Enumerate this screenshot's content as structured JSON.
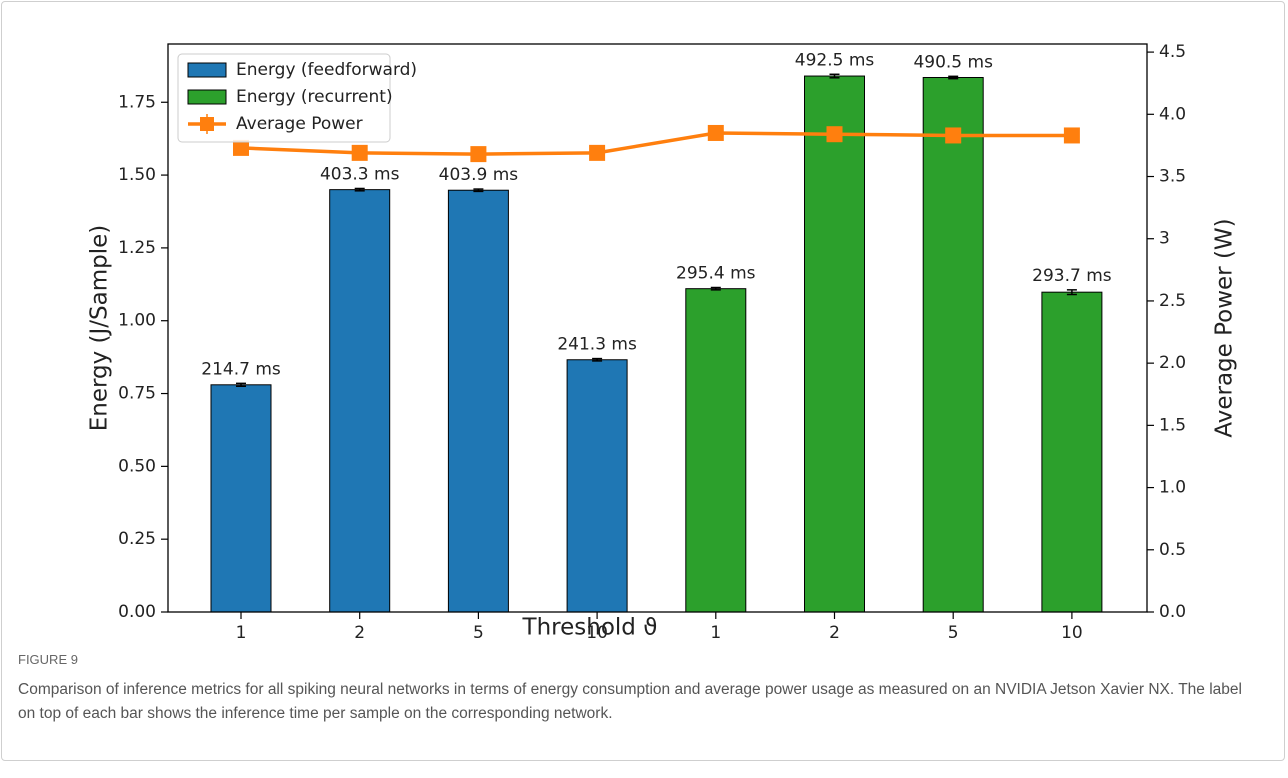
{
  "chart_data": {
    "type": "bar",
    "categories": [
      "1",
      "2",
      "5",
      "10",
      "1",
      "2",
      "5",
      "10"
    ],
    "series": [
      {
        "name": "Energy (feedforward)",
        "type": "bar",
        "color": "#1f77b4",
        "values": [
          0.78,
          1.45,
          1.448,
          0.866,
          null,
          null,
          null,
          null
        ],
        "errors": [
          0.005,
          0.004,
          0.004,
          0.004,
          null,
          null,
          null,
          null
        ]
      },
      {
        "name": "Energy (recurrent)",
        "type": "bar",
        "color": "#2ca02c",
        "values": [
          null,
          null,
          null,
          null,
          1.11,
          1.84,
          1.835,
          1.098
        ],
        "errors": [
          null,
          null,
          null,
          null,
          0.004,
          0.006,
          0.004,
          0.008
        ]
      },
      {
        "name": "Average Power",
        "type": "line",
        "axis": "y2",
        "color": "#ff7f0e",
        "values": [
          3.73,
          3.69,
          3.68,
          3.69,
          3.85,
          3.84,
          3.83,
          3.83
        ]
      }
    ],
    "bar_labels": [
      "214.7 ms",
      "403.3 ms",
      "403.9 ms",
      "241.3 ms",
      "295.4 ms",
      "492.5 ms",
      "490.5 ms",
      "293.7 ms"
    ],
    "xlabel": "Threshold ϑ",
    "ylabel": "Energy (J/Sample)",
    "y2label": "Average Power (W)",
    "ylim": [
      0,
      1.95
    ],
    "yticks": [
      {
        "value": 0,
        "label": "0.00"
      },
      {
        "value": 0.25,
        "label": "0.25"
      },
      {
        "value": 0.5,
        "label": "0.50"
      },
      {
        "value": 0.75,
        "label": "0.75"
      },
      {
        "value": 1,
        "label": "1.00"
      },
      {
        "value": 1.25,
        "label": "1.25"
      },
      {
        "value": 1.5,
        "label": "1.50"
      },
      {
        "value": 1.75,
        "label": "1.75"
      }
    ],
    "y2lim": [
      0,
      4.565
    ],
    "y2ticks": [
      {
        "value": 0,
        "label": "0.0"
      },
      {
        "value": 0.5,
        "label": "0.5"
      },
      {
        "value": 1,
        "label": "1.0"
      },
      {
        "value": 1.5,
        "label": "1.5"
      },
      {
        "value": 2,
        "label": "2.0"
      },
      {
        "value": 2.5,
        "label": "2.5"
      },
      3,
      {
        "value": 3.5,
        "label": "3.5"
      },
      {
        "value": 4,
        "label": "4.0"
      },
      {
        "value": 4.5,
        "label": "4.5"
      }
    ],
    "legend": "upper left"
  },
  "caption": {
    "label": "FIGURE 9",
    "text": "Comparison of inference metrics for all spiking neural networks in terms of energy consumption and average power usage as measured on an NVIDIA Jetson Xavier NX. The label on top of each bar shows the inference time per sample on the corresponding network."
  }
}
